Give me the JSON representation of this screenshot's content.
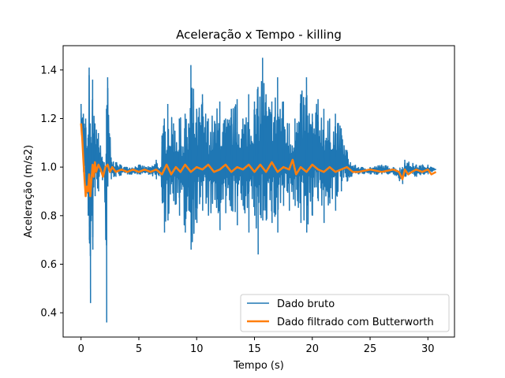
{
  "chart_data": {
    "type": "line",
    "title": "Aceleração x Tempo - killing",
    "xlabel": "Tempo (s)",
    "ylabel": "Aceleração (m/s2)",
    "xlim": [
      -1.55,
      32.3
    ],
    "ylim": [
      0.3,
      1.5
    ],
    "xticks": [
      0,
      5,
      10,
      15,
      20,
      25,
      30
    ],
    "yticks": [
      0.4,
      0.6,
      0.8,
      1.0,
      1.2,
      1.4
    ],
    "xtick_labels": [
      "0",
      "5",
      "10",
      "15",
      "20",
      "25",
      "30"
    ],
    "ytick_labels": [
      "0.4",
      "0.6",
      "0.8",
      "1.0",
      "1.2",
      "1.4"
    ],
    "grid": false,
    "legend_position": "lower-right",
    "series": [
      {
        "name": "Dado bruto",
        "color": "#1f77b4",
        "envelope_note": "raw signal approximated by its visible min/max envelope",
        "x": [
          0.0,
          0.2,
          0.4,
          0.6,
          0.7,
          0.8,
          0.9,
          1.0,
          1.2,
          1.5,
          2.0,
          2.2,
          2.3,
          2.6,
          3.0,
          4.0,
          5.0,
          6.0,
          6.5,
          6.9,
          7.0,
          7.2,
          7.5,
          8.0,
          8.5,
          9.0,
          9.3,
          9.5,
          10.0,
          10.5,
          11.0,
          12.0,
          12.5,
          13.0,
          13.5,
          14.0,
          14.5,
          15.0,
          15.3,
          15.7,
          16.0,
          16.5,
          17.0,
          17.5,
          18.0,
          18.5,
          19.0,
          19.5,
          20.0,
          20.5,
          21.0,
          21.5,
          22.0,
          22.5,
          23.0,
          23.3,
          24.0,
          25.0,
          26.0,
          27.0,
          27.8,
          28.0,
          29.0,
          30.0,
          30.7
        ],
        "y_max": [
          1.26,
          1.22,
          1.2,
          1.12,
          1.41,
          1.18,
          1.1,
          1.36,
          1.18,
          1.14,
          1.02,
          1.24,
          1.37,
          1.04,
          1.02,
          1.0,
          1.01,
          1.0,
          1.03,
          1.0,
          1.13,
          1.2,
          1.26,
          1.18,
          1.2,
          1.22,
          1.18,
          1.42,
          1.24,
          1.3,
          1.2,
          1.27,
          1.2,
          1.24,
          1.28,
          1.2,
          1.3,
          1.27,
          1.33,
          1.45,
          1.3,
          1.27,
          1.37,
          1.27,
          1.18,
          1.2,
          1.3,
          1.37,
          1.22,
          1.28,
          1.24,
          1.2,
          1.22,
          1.16,
          1.07,
          1.02,
          1.0,
          1.0,
          1.01,
          1.0,
          1.0,
          1.03,
          1.01,
          1.01,
          0.99
        ],
        "y_min": [
          1.16,
          0.98,
          0.92,
          0.8,
          0.7,
          0.44,
          0.8,
          0.66,
          0.88,
          0.9,
          0.96,
          0.36,
          0.92,
          0.95,
          0.96,
          0.97,
          0.97,
          0.97,
          0.95,
          0.96,
          0.86,
          0.73,
          0.78,
          0.86,
          0.8,
          0.73,
          0.82,
          0.66,
          0.77,
          0.82,
          0.8,
          0.74,
          0.81,
          0.82,
          0.76,
          0.84,
          0.73,
          0.8,
          0.64,
          0.78,
          0.78,
          0.77,
          0.73,
          0.84,
          0.82,
          0.84,
          0.77,
          0.73,
          0.8,
          0.86,
          0.77,
          0.85,
          0.82,
          0.9,
          0.94,
          0.96,
          0.97,
          0.97,
          0.97,
          0.97,
          0.93,
          0.96,
          0.96,
          0.97,
          0.99
        ]
      },
      {
        "name": "Dado filtrado com Butterworth",
        "color": "#ff7f0e",
        "x": [
          0.0,
          0.1,
          0.2,
          0.3,
          0.4,
          0.5,
          0.6,
          0.7,
          0.8,
          0.9,
          1.0,
          1.1,
          1.2,
          1.3,
          1.5,
          1.7,
          1.9,
          2.1,
          2.3,
          2.5,
          2.7,
          3.0,
          3.5,
          4.0,
          4.5,
          5.0,
          5.5,
          6.0,
          6.5,
          7.0,
          7.4,
          7.8,
          8.2,
          8.6,
          9.0,
          9.5,
          10.0,
          10.5,
          11.0,
          11.5,
          12.0,
          12.5,
          13.0,
          13.5,
          14.0,
          14.5,
          15.0,
          15.5,
          16.0,
          16.5,
          17.0,
          17.5,
          18.0,
          18.3,
          18.6,
          19.0,
          19.5,
          20.0,
          20.5,
          21.0,
          21.5,
          22.0,
          22.5,
          23.0,
          23.5,
          24.0,
          25.0,
          26.0,
          27.0,
          27.5,
          27.8,
          28.0,
          28.3,
          28.6,
          29.0,
          29.5,
          30.0,
          30.3,
          30.7
        ],
        "y": [
          1.18,
          1.12,
          1.03,
          0.95,
          0.88,
          0.92,
          0.9,
          0.97,
          0.88,
          0.95,
          1.01,
          0.96,
          1.02,
          0.98,
          1.01,
          0.99,
          0.96,
          1.0,
          1.01,
          0.98,
          1.0,
          0.98,
          0.99,
          0.98,
          0.99,
          0.98,
          0.99,
          0.98,
          0.99,
          0.97,
          1.01,
          0.97,
          1.0,
          0.98,
          1.01,
          0.98,
          1.0,
          0.99,
          1.01,
          0.98,
          0.99,
          1.01,
          0.98,
          1.0,
          0.99,
          1.01,
          0.98,
          1.01,
          0.98,
          1.02,
          0.98,
          1.0,
          0.99,
          1.03,
          0.97,
          1.0,
          0.98,
          1.01,
          0.99,
          0.98,
          1.0,
          0.98,
          0.99,
          1.0,
          0.98,
          0.98,
          0.99,
          0.98,
          0.99,
          0.98,
          0.95,
          0.99,
          0.97,
          0.98,
          0.99,
          0.98,
          0.99,
          0.97,
          0.98
        ]
      }
    ]
  }
}
